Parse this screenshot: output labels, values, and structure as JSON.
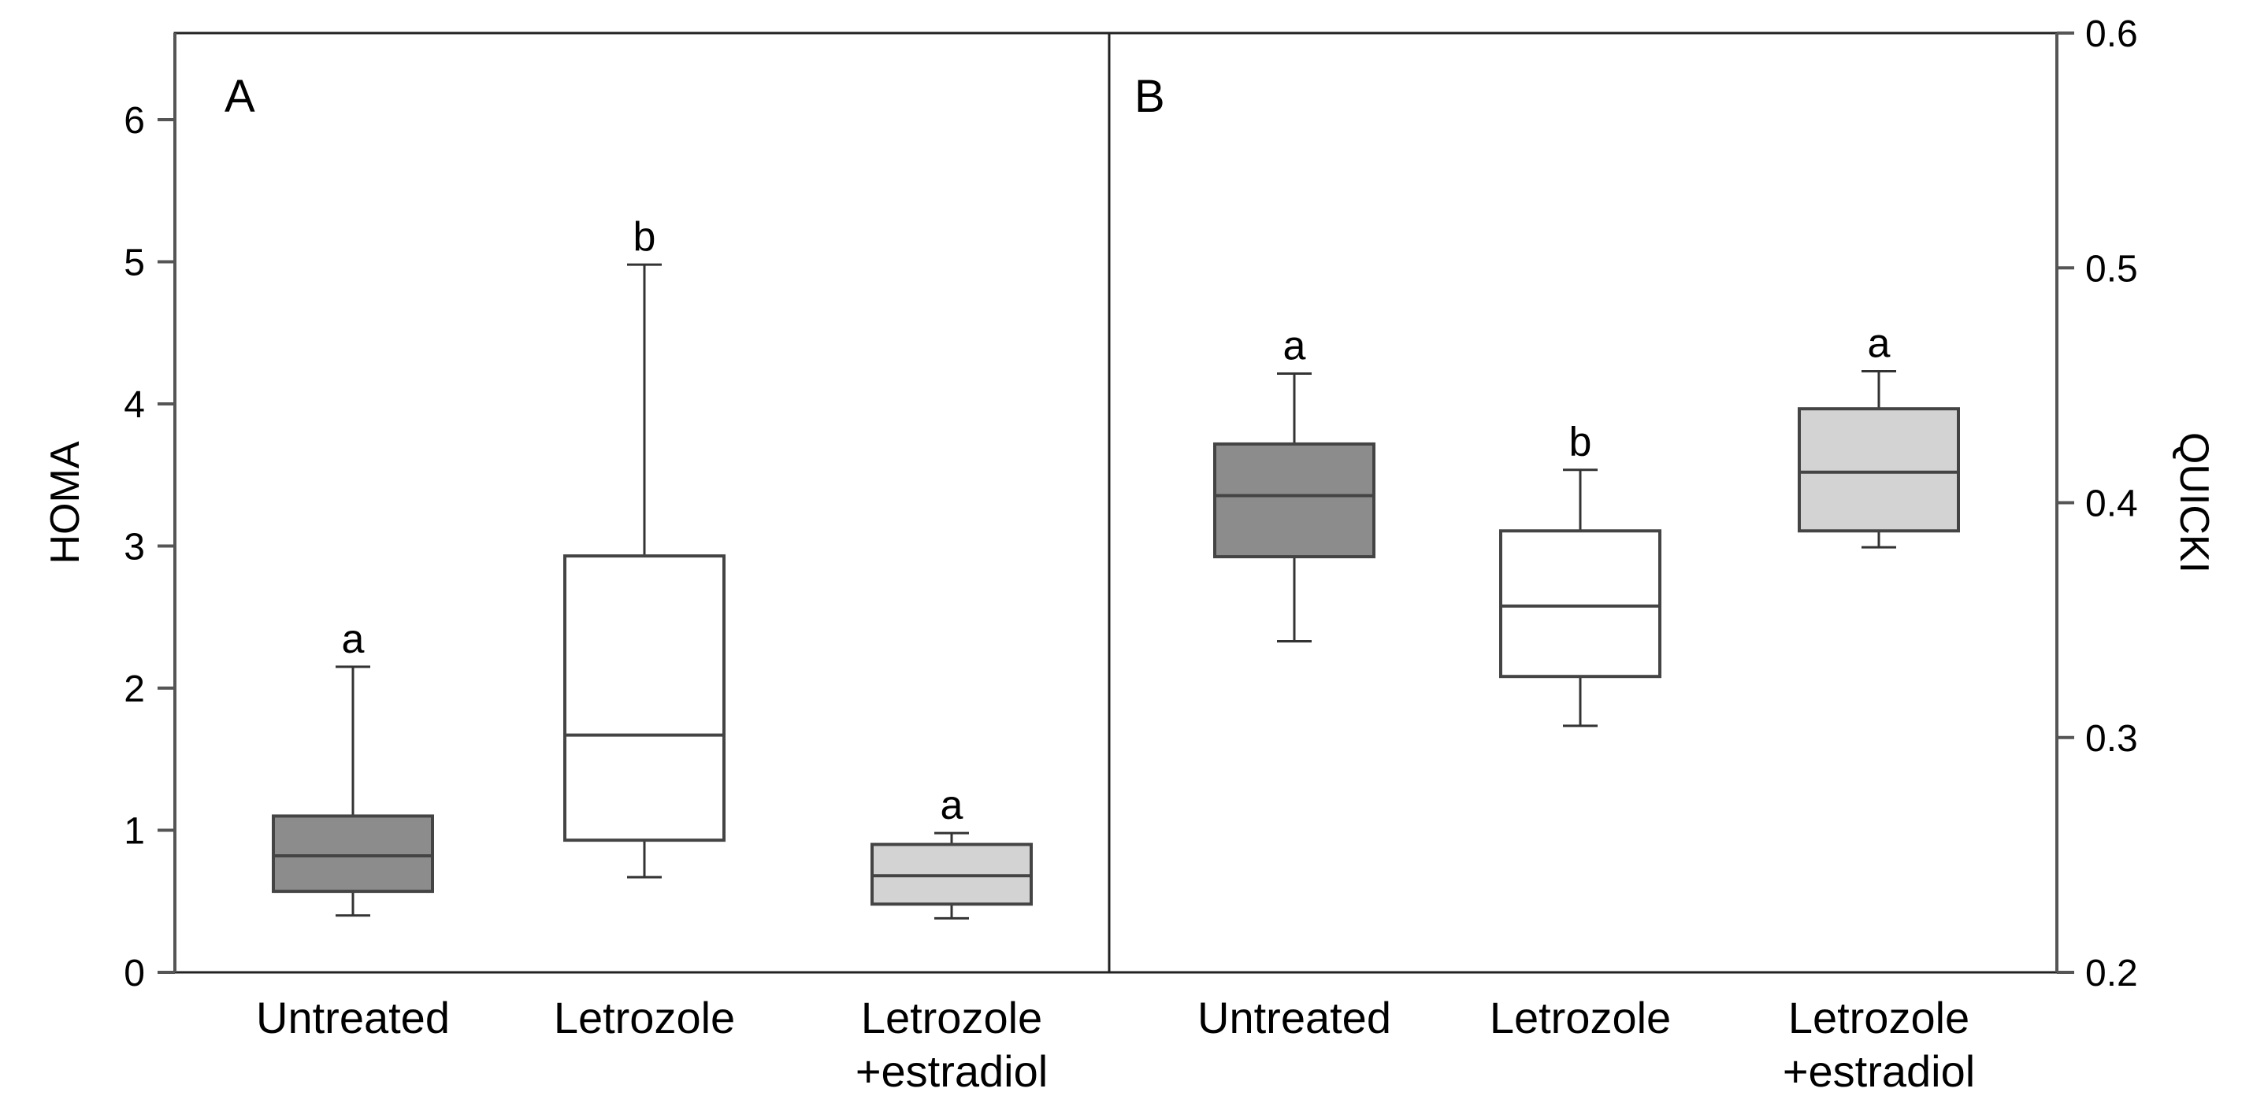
{
  "chart_data": [
    {
      "type": "box",
      "panel": "A",
      "ylabel": "HOMA",
      "ylim": [
        0,
        6.5
      ],
      "yticks": [
        0,
        1,
        2,
        3,
        4,
        5,
        6
      ],
      "categories": [
        "Untreated",
        "Letrozole",
        "Letrozole\n+estradiol"
      ],
      "boxes": [
        {
          "min": 0.4,
          "q1": 0.57,
          "median": 0.82,
          "q3": 1.1,
          "max": 2.15,
          "sig": "a",
          "color": "#8c8c8c"
        },
        {
          "min": 0.67,
          "q1": 0.93,
          "median": 1.67,
          "q3": 2.93,
          "max": 4.98,
          "sig": "b",
          "color": "#ffffff"
        },
        {
          "min": 0.38,
          "q1": 0.48,
          "median": 0.68,
          "q3": 0.9,
          "max": 0.98,
          "sig": "a",
          "color": "#d3d3d3"
        }
      ]
    },
    {
      "type": "box",
      "panel": "B",
      "ylabel": "QUICKI",
      "ylim": [
        0.2,
        0.6
      ],
      "yticks": [
        0.2,
        0.3,
        0.4,
        0.5,
        0.6
      ],
      "categories": [
        "Untreated",
        "Letrozole",
        "Letrozole\n+estradiol"
      ],
      "boxes": [
        {
          "min": 0.341,
          "q1": 0.377,
          "median": 0.403,
          "q3": 0.425,
          "max": 0.455,
          "sig": "a",
          "color": "#8c8c8c"
        },
        {
          "min": 0.305,
          "q1": 0.326,
          "median": 0.356,
          "q3": 0.388,
          "max": 0.414,
          "sig": "b",
          "color": "#ffffff"
        },
        {
          "min": 0.381,
          "q1": 0.388,
          "median": 0.413,
          "q3": 0.44,
          "max": 0.456,
          "sig": "a",
          "color": "#d3d3d3"
        }
      ]
    }
  ]
}
